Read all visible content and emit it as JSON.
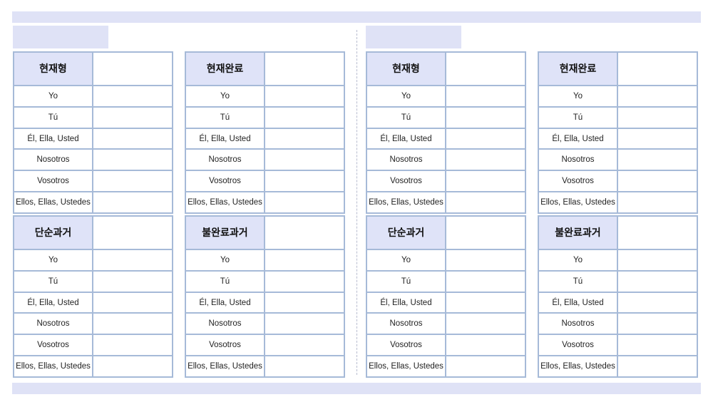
{
  "worksheet": {
    "tenses": {
      "present": "현재형",
      "present_perfect": "현재완료",
      "preterite": "단순과거",
      "imperfect": "불완료과거"
    },
    "pronouns": [
      "Yo",
      "Tú",
      "Él, Ella, Usted",
      "Nosotros",
      "Vosotros",
      "Ellos, Ellas, Ustedes"
    ],
    "colors": {
      "header_fill": "#dfe3f8",
      "border": "#a6bad8",
      "band": "#dfe2f6"
    }
  }
}
